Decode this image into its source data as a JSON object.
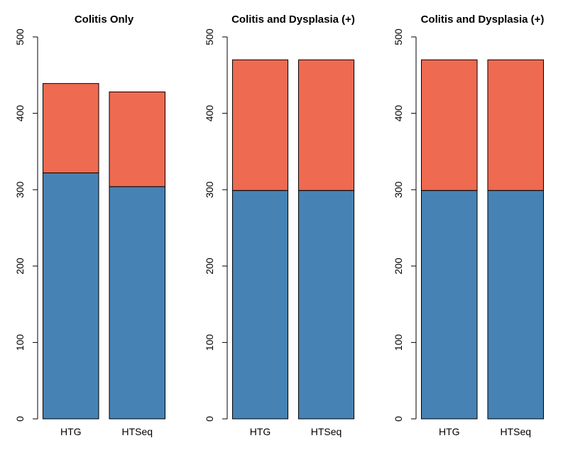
{
  "chart_data": [
    {
      "type": "bar",
      "stacked": true,
      "title": "Colitis Only",
      "categories": [
        "HTG",
        "HTSeq"
      ],
      "series": [
        {
          "color": "#4682B4",
          "values": [
            322,
            304
          ]
        },
        {
          "color": "#EE6A50",
          "values": [
            117,
            124
          ]
        }
      ],
      "ylim": [
        0,
        500
      ],
      "yticks": [
        "0",
        "100",
        "200",
        "300",
        "400",
        "500"
      ]
    },
    {
      "type": "bar",
      "stacked": true,
      "title": "Colitis and Dysplasia (+)",
      "categories": [
        "HTG",
        "HTSeq"
      ],
      "series": [
        {
          "color": "#4682B4",
          "values": [
            299,
            299
          ]
        },
        {
          "color": "#EE6A50",
          "values": [
            171,
            171
          ]
        }
      ],
      "ylim": [
        0,
        500
      ],
      "yticks": [
        "0",
        "100",
        "200",
        "300",
        "400",
        "500"
      ]
    },
    {
      "type": "bar",
      "stacked": true,
      "title": "Colitis and Dysplasia (+)",
      "categories": [
        "HTG",
        "HTSeq"
      ],
      "series": [
        {
          "color": "#4682B4",
          "values": [
            299,
            299
          ]
        },
        {
          "color": "#EE6A50",
          "values": [
            171,
            171
          ]
        }
      ],
      "ylim": [
        0,
        500
      ],
      "yticks": [
        "0",
        "100",
        "200",
        "300",
        "400",
        "500"
      ]
    }
  ]
}
